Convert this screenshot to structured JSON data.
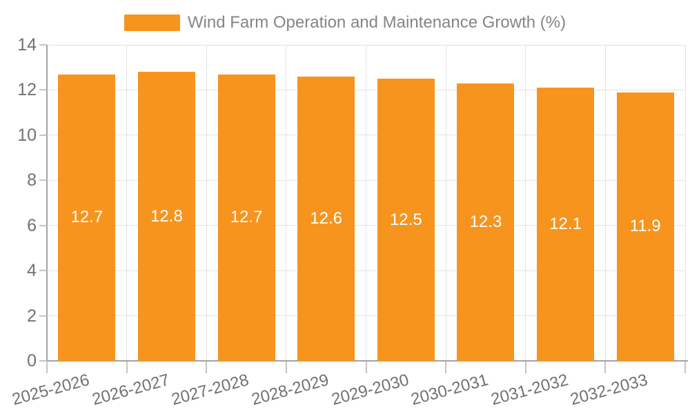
{
  "chart_data": {
    "type": "bar",
    "title": "Wind Farm Operation and Maintenance Growth (%)",
    "categories": [
      "2025-2026",
      "2026-2027",
      "2027-2028",
      "2028-2029",
      "2029-2030",
      "2030-2031",
      "2031-2032",
      "2032-2033"
    ],
    "values": [
      12.7,
      12.8,
      12.7,
      12.6,
      12.5,
      12.3,
      12.1,
      11.9
    ],
    "bar_labels": [
      "12.7",
      "12.8",
      "12.7",
      "12.6",
      "12.5",
      "12.3",
      "12.1",
      "11.9"
    ],
    "xlabel": "",
    "ylabel": "",
    "ylim": [
      0,
      14
    ],
    "ytick_step": 2,
    "ytick_labels": [
      "0",
      "2",
      "4",
      "6",
      "8",
      "10",
      "12",
      "14"
    ],
    "grid": true,
    "legend_position": "top",
    "colors": {
      "bar": "#F7941E",
      "bar_label": "#FFFFFF",
      "axis_line": "#A3A3A3",
      "tick_line": "#C4C4C4",
      "grid_line": "#E3E3E3",
      "axis_text": "#717171",
      "legend_text": "#858585"
    }
  }
}
